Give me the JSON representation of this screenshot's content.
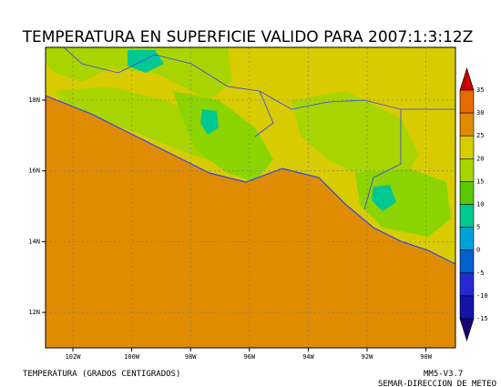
{
  "title": "TEMPERATURA EN SUPERFICIE VALIDO PARA 2007:1:3:12Z",
  "lat_labels": [
    "18N",
    "16N",
    "14N",
    "12N"
  ],
  "lon_labels": [
    "102W",
    "100W",
    "98W",
    "96W",
    "94W",
    "92W",
    "90W"
  ],
  "colorbar": {
    "labels": [
      35,
      30,
      25,
      20,
      15,
      10,
      5,
      0,
      -5,
      -10,
      -15
    ],
    "colors": [
      "#c80000",
      "#e86a00",
      "#e08c00",
      "#d8cc00",
      "#a8d400",
      "#5cc800",
      "#00c890",
      "#00a0d8",
      "#0060d0",
      "#2828d0",
      "#1414a8",
      "#1a0070"
    ]
  },
  "footer": {
    "variable": "TEMPERATURA (GRADOS CENTIGRADOS)",
    "model": "MM5-V3.7",
    "source": "SEMAR-DIRECCION DE METEO"
  }
}
